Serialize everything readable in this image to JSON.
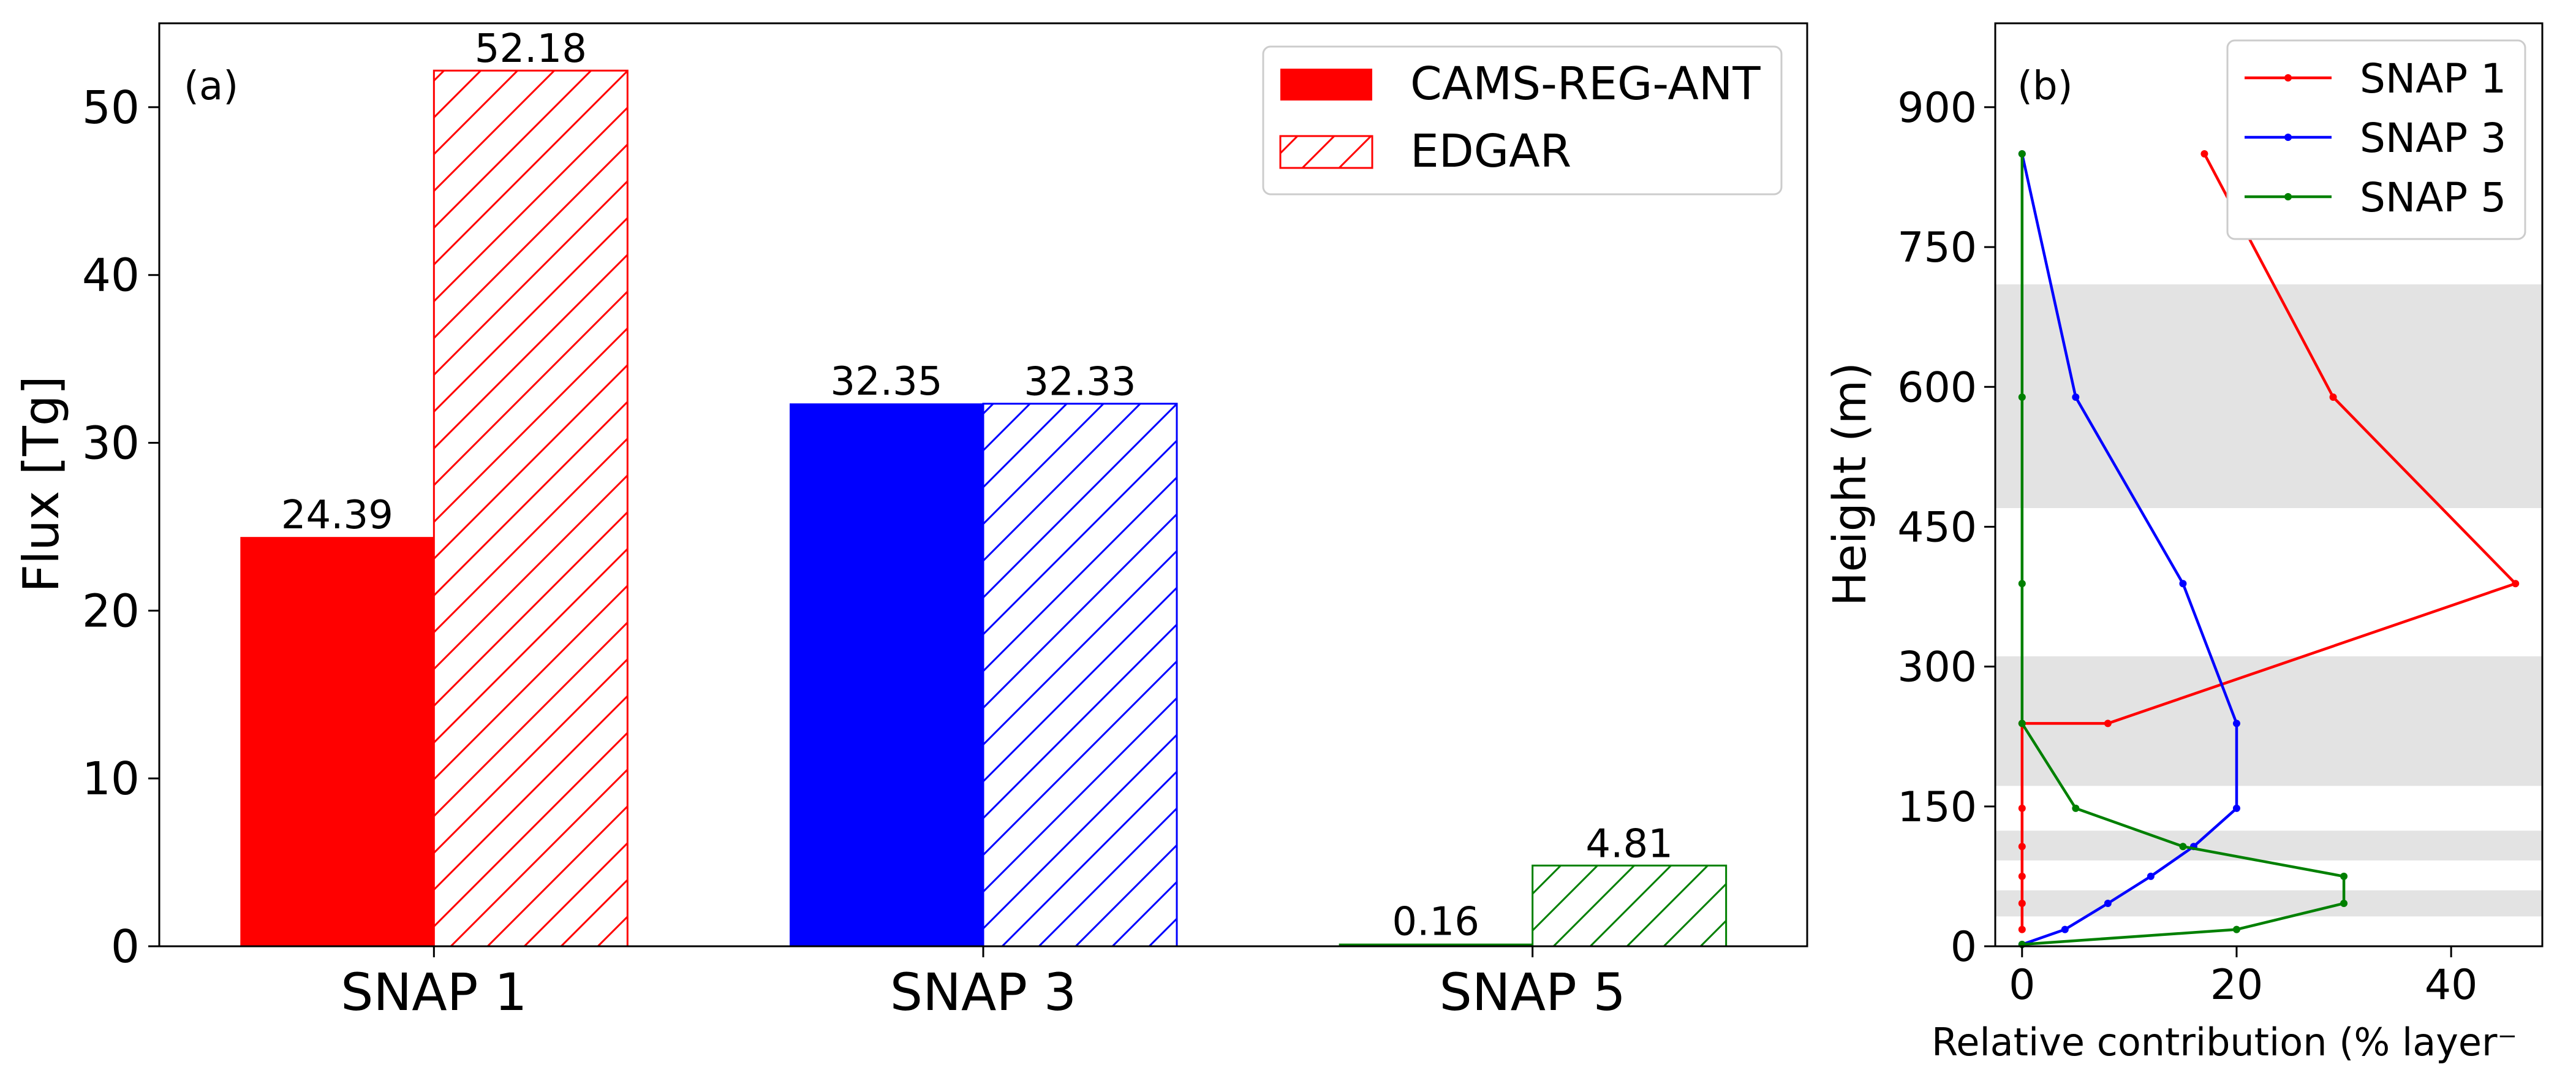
{
  "chart_data": [
    {
      "panel_label": "(a)",
      "type": "bar",
      "categories": [
        "SNAP 1",
        "SNAP 3",
        "SNAP 5"
      ],
      "category_colors": [
        "#ff0000",
        "#0000ff",
        "#008000"
      ],
      "series": [
        {
          "name": "CAMS-REG-ANT",
          "fill": "solid",
          "values": [
            24.39,
            32.35,
            0.16
          ],
          "labels": [
            "24.39",
            "32.35",
            "0.16"
          ]
        },
        {
          "name": "EDGAR",
          "fill": "hatched",
          "values": [
            52.18,
            32.33,
            4.81
          ],
          "labels": [
            "52.18",
            "32.33",
            "4.81"
          ]
        }
      ],
      "xlabel": "",
      "ylabel": "Flux [Tg]",
      "ylim": [
        0,
        55
      ],
      "yticks": [
        0,
        10,
        20,
        30,
        40,
        50
      ],
      "grid": false,
      "legend": "top-right",
      "legend_colors": [
        "#ff0000",
        "#ff0000"
      ]
    },
    {
      "panel_label": "(b)",
      "type": "line",
      "series": [
        {
          "name": "SNAP 1",
          "color": "#ff0000",
          "x": [
            0,
            0,
            0,
            0,
            0,
            0,
            8,
            46,
            29,
            17
          ],
          "y": [
            18,
            46,
            75,
            107,
            148,
            239,
            239,
            389,
            589,
            850
          ]
        },
        {
          "name": "SNAP 3",
          "color": "#0000ff",
          "x": [
            0,
            4,
            8,
            12,
            16,
            20,
            20,
            15,
            5,
            0
          ],
          "y": [
            2,
            18,
            46,
            75,
            107,
            148,
            239,
            389,
            589,
            850
          ]
        },
        {
          "name": "SNAP 5",
          "color": "#008000",
          "x": [
            0,
            20,
            30,
            30,
            15,
            5,
            0,
            0,
            0,
            0
          ],
          "y": [
            2,
            18,
            46,
            75,
            107,
            148,
            239,
            389,
            589,
            850
          ]
        }
      ],
      "shaded_bands": [
        [
          32,
          60
        ],
        [
          92,
          124
        ],
        [
          172,
          311
        ],
        [
          470,
          710
        ]
      ],
      "band_color": "#e3e3e3",
      "xlabel": "Relative contribution (% layer⁻",
      "ylabel": "Height (m)",
      "xlim": [
        -2.5,
        48.5
      ],
      "ylim": [
        0,
        990
      ],
      "xticks": [
        0,
        20,
        40
      ],
      "yticks": [
        0,
        150,
        300,
        450,
        600,
        750,
        900
      ],
      "grid": false,
      "legend": "top-right"
    }
  ]
}
